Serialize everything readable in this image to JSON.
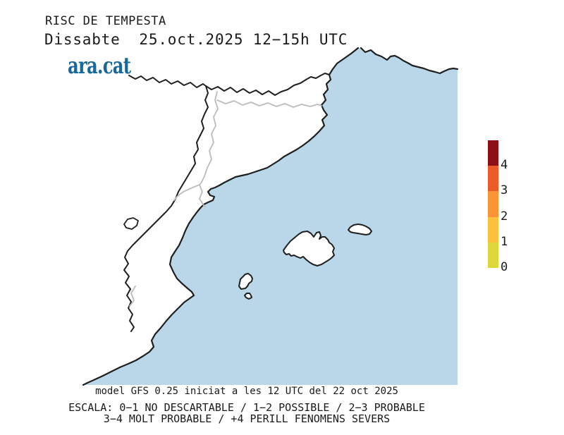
{
  "header": {
    "title": "RISC DE TEMPESTA",
    "subtitle": "Dissabte  25.oct.2025 12−15h UTC",
    "logo": "ara.cat"
  },
  "colorbar": {
    "tick_labels": [
      "4",
      "3",
      "2",
      "1",
      "0"
    ],
    "colors_top_to_bottom": [
      "#8c1016",
      "#ec5c28",
      "#fb9435",
      "#fdc13c",
      "#dcd837"
    ]
  },
  "footer": {
    "model_line": "model GFS 0.25 iniciat a les 12 UTC del 22 oct 2025",
    "scale_line1": "ESCALA: 0−1 NO DESCARTABLE / 1−2 POSSIBLE / 2−3 PROBABLE",
    "scale_line2": "3−4 MOLT PROBABLE / +4 PERILL FENOMENS SEVERS"
  },
  "map_colors": {
    "sea": "#b9d7e8",
    "coast": "#1f1f1f",
    "admin": "#bcbcbc",
    "logo": "#17699c"
  }
}
